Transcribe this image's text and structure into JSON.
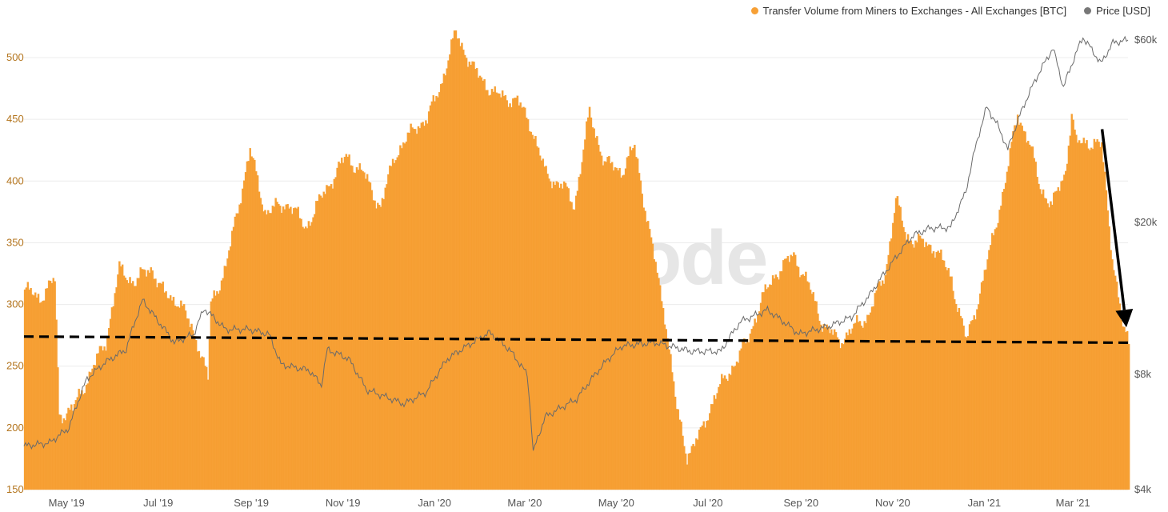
{
  "legend": {
    "volume_label": "Transfer Volume from Miners to Exchanges - All Exchanges [BTC]",
    "price_label": "Price [USD]"
  },
  "watermark": "glassnode",
  "colors": {
    "bars": "#f7a035",
    "bar_edge": "#f29a2a",
    "price_line": "#6a6a6a",
    "left_axis_text": "#b3741d",
    "right_axis_text": "#555555",
    "grid": "#ececec",
    "annotation": "#000000"
  },
  "chart_data": {
    "type": "bar",
    "title": "",
    "xlabel": "",
    "ylabel": "",
    "x_tick_labels": [
      "May '19",
      "Jul '19",
      "Sep '19",
      "Nov '19",
      "Jan '20",
      "Mar '20",
      "May '20",
      "Jul '20",
      "Sep '20",
      "Nov '20",
      "Jan '21",
      "Mar '21"
    ],
    "y_left": {
      "ticks": [
        150,
        200,
        250,
        300,
        350,
        400,
        450,
        500
      ],
      "range": [
        150,
        535
      ]
    },
    "y_right": {
      "scale": "log",
      "tick_labels": [
        "$4k",
        "$8k",
        "$20k",
        "$60k"
      ],
      "tick_values": [
        4000,
        8000,
        20000,
        60000
      ],
      "range": [
        4000,
        70000
      ]
    },
    "grid": true,
    "legend_position": "top-right",
    "date_range": [
      "2019-04-08",
      "2021-04-12"
    ],
    "series": [
      {
        "name": "Transfer Volume from Miners to Exchanges - All Exchanges [BTC]",
        "axis": "left",
        "type": "bar",
        "knots": [
          [
            "2019-04-08",
            312
          ],
          [
            "2019-04-18",
            305
          ],
          [
            "2019-04-28",
            320
          ],
          [
            "2019-05-01",
            210
          ],
          [
            "2019-05-10",
            215
          ],
          [
            "2019-05-20",
            240
          ],
          [
            "2019-06-01",
            270
          ],
          [
            "2019-06-10",
            328
          ],
          [
            "2019-06-20",
            318
          ],
          [
            "2019-07-01",
            330
          ],
          [
            "2019-07-10",
            308
          ],
          [
            "2019-07-20",
            302
          ],
          [
            "2019-08-01",
            270
          ],
          [
            "2019-08-08",
            240
          ],
          [
            "2019-08-10",
            300
          ],
          [
            "2019-08-20",
            330
          ],
          [
            "2019-08-28",
            378
          ],
          [
            "2019-09-05",
            425
          ],
          [
            "2019-09-15",
            375
          ],
          [
            "2019-10-01",
            382
          ],
          [
            "2019-10-12",
            362
          ],
          [
            "2019-10-25",
            392
          ],
          [
            "2019-11-08",
            420
          ],
          [
            "2019-11-20",
            405
          ],
          [
            "2019-12-01",
            378
          ],
          [
            "2019-12-10",
            420
          ],
          [
            "2019-12-25",
            445
          ],
          [
            "2020-01-01",
            450
          ],
          [
            "2020-01-10",
            478
          ],
          [
            "2020-01-20",
            520
          ],
          [
            "2020-02-01",
            490
          ],
          [
            "2020-02-15",
            470
          ],
          [
            "2020-03-01",
            465
          ],
          [
            "2020-03-10",
            445
          ],
          [
            "2020-03-20",
            405
          ],
          [
            "2020-04-01",
            395
          ],
          [
            "2020-04-08",
            380
          ],
          [
            "2020-04-18",
            455
          ],
          [
            "2020-04-28",
            415
          ],
          [
            "2020-05-10",
            408
          ],
          [
            "2020-05-18",
            428
          ],
          [
            "2020-05-28",
            358
          ],
          [
            "2020-06-08",
            285
          ],
          [
            "2020-06-15",
            215
          ],
          [
            "2020-06-22",
            178
          ],
          [
            "2020-07-01",
            195
          ],
          [
            "2020-07-10",
            225
          ],
          [
            "2020-07-20",
            245
          ],
          [
            "2020-08-01",
            270
          ],
          [
            "2020-08-10",
            302
          ],
          [
            "2020-08-20",
            325
          ],
          [
            "2020-09-01",
            340
          ],
          [
            "2020-09-10",
            318
          ],
          [
            "2020-09-20",
            285
          ],
          [
            "2020-10-01",
            270
          ],
          [
            "2020-10-10",
            280
          ],
          [
            "2020-10-20",
            290
          ],
          [
            "2020-11-01",
            325
          ],
          [
            "2020-11-08",
            385
          ],
          [
            "2020-11-15",
            355
          ],
          [
            "2020-11-25",
            350
          ],
          [
            "2020-12-05",
            345
          ],
          [
            "2020-12-15",
            320
          ],
          [
            "2020-12-25",
            270
          ],
          [
            "2021-01-01",
            300
          ],
          [
            "2021-01-10",
            345
          ],
          [
            "2021-01-20",
            400
          ],
          [
            "2021-01-28",
            455
          ],
          [
            "2021-02-05",
            430
          ],
          [
            "2021-02-12",
            395
          ],
          [
            "2021-02-20",
            380
          ],
          [
            "2021-03-01",
            408
          ],
          [
            "2021-03-05",
            455
          ],
          [
            "2021-03-08",
            430
          ],
          [
            "2021-03-15",
            432
          ],
          [
            "2021-03-25",
            428
          ],
          [
            "2021-04-01",
            340
          ],
          [
            "2021-04-08",
            280
          ],
          [
            "2021-04-12",
            270
          ]
        ]
      },
      {
        "name": "Price [USD]",
        "axis": "right",
        "type": "line",
        "knots": [
          [
            "2019-04-08",
            5200
          ],
          [
            "2019-04-25",
            5300
          ],
          [
            "2019-05-08",
            5800
          ],
          [
            "2019-05-20",
            7800
          ],
          [
            "2019-06-01",
            8600
          ],
          [
            "2019-06-15",
            9300
          ],
          [
            "2019-06-26",
            12500
          ],
          [
            "2019-07-05",
            11200
          ],
          [
            "2019-07-17",
            9700
          ],
          [
            "2019-07-30",
            10200
          ],
          [
            "2019-08-06",
            11900
          ],
          [
            "2019-08-20",
            10500
          ],
          [
            "2019-09-05",
            10500
          ],
          [
            "2019-09-18",
            10200
          ],
          [
            "2019-09-26",
            8500
          ],
          [
            "2019-10-15",
            8200
          ],
          [
            "2019-10-23",
            7500
          ],
          [
            "2019-10-27",
            9300
          ],
          [
            "2019-11-10",
            8800
          ],
          [
            "2019-11-22",
            7300
          ],
          [
            "2019-12-17",
            6700
          ],
          [
            "2020-01-01",
            7200
          ],
          [
            "2020-01-15",
            8800
          ],
          [
            "2020-02-12",
            10300
          ],
          [
            "2020-02-25",
            9300
          ],
          [
            "2020-03-08",
            8000
          ],
          [
            "2020-03-12",
            5000
          ],
          [
            "2020-03-20",
            6200
          ],
          [
            "2020-04-10",
            6900
          ],
          [
            "2020-04-30",
            8700
          ],
          [
            "2020-05-10",
            9500
          ],
          [
            "2020-06-01",
            9700
          ],
          [
            "2020-06-25",
            9200
          ],
          [
            "2020-07-15",
            9200
          ],
          [
            "2020-07-28",
            11000
          ],
          [
            "2020-08-15",
            11800
          ],
          [
            "2020-09-05",
            10200
          ],
          [
            "2020-09-25",
            10700
          ],
          [
            "2020-10-10",
            11300
          ],
          [
            "2020-10-22",
            12900
          ],
          [
            "2020-11-05",
            15500
          ],
          [
            "2020-11-20",
            18500
          ],
          [
            "2020-12-01",
            19300
          ],
          [
            "2020-12-15",
            19400
          ],
          [
            "2020-12-25",
            24000
          ],
          [
            "2021-01-08",
            40000
          ],
          [
            "2021-01-15",
            36000
          ],
          [
            "2021-01-22",
            31000
          ],
          [
            "2021-02-08",
            46000
          ],
          [
            "2021-02-21",
            57000
          ],
          [
            "2021-02-28",
            45000
          ],
          [
            "2021-03-13",
            61000
          ],
          [
            "2021-03-25",
            52000
          ],
          [
            "2021-04-02",
            59000
          ],
          [
            "2021-04-12",
            60000
          ]
        ]
      }
    ],
    "annotations": [
      {
        "type": "dashed-trendline",
        "from": [
          "2019-04-08",
          274
        ],
        "to": [
          "2021-04-12",
          269
        ]
      },
      {
        "type": "arrow",
        "from": [
          "2021-03-30",
          442
        ],
        "to": [
          "2021-04-12",
          275
        ]
      }
    ]
  }
}
